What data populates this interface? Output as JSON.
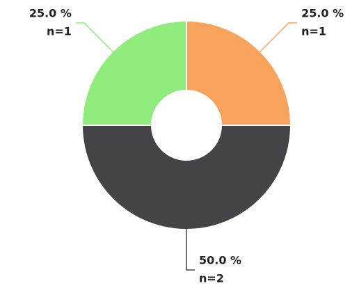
{
  "chart_data": {
    "type": "donut",
    "categories": [
      null,
      null,
      null
    ],
    "values": [
      25,
      50,
      25
    ],
    "value_labels": [
      "25.0 %",
      "50.0 %",
      "25.0 %"
    ],
    "counts": [
      1,
      2,
      1
    ],
    "count_labels": [
      "n=1",
      "n=2",
      "n=1"
    ],
    "colors": [
      "#f7a35c",
      "#434348",
      "#90ed7d"
    ]
  }
}
